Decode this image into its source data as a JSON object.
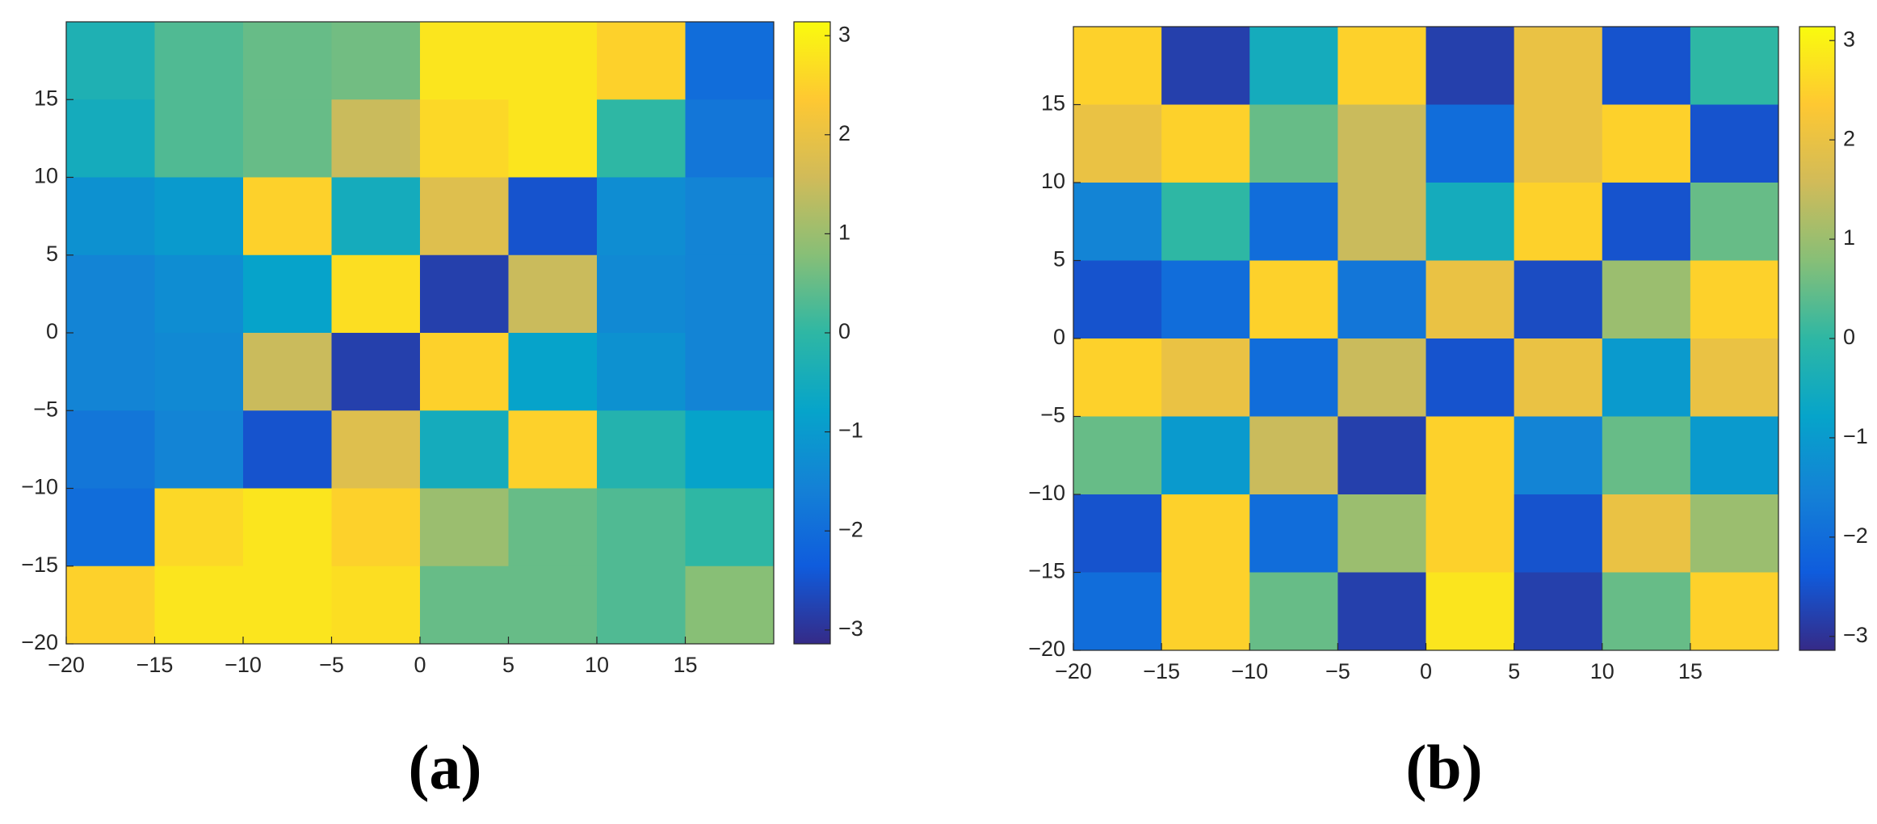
{
  "chart_data": [
    {
      "type": "heatmap",
      "label": "(a)",
      "x": [
        -17.5,
        -12.5,
        -7.5,
        -2.5,
        2.5,
        7.5,
        12.5,
        17.5
      ],
      "y": [
        17.5,
        12.5,
        7.5,
        2.5,
        -2.5,
        -7.5,
        -12.5,
        -17.5
      ],
      "z": [
        [
          -0.3,
          0.3,
          0.5,
          0.6,
          2.8,
          2.8,
          2.5,
          -2.0
        ],
        [
          -0.5,
          0.3,
          0.5,
          1.5,
          2.6,
          2.8,
          0.0,
          -1.8
        ],
        [
          -1.2,
          -1.0,
          2.5,
          -0.5,
          1.8,
          -2.5,
          -1.3,
          -1.5
        ],
        [
          -1.5,
          -1.3,
          -0.8,
          2.7,
          -2.8,
          1.5,
          -1.4,
          -1.5
        ],
        [
          -1.5,
          -1.4,
          1.5,
          -2.8,
          2.5,
          -0.8,
          -1.2,
          -1.5
        ],
        [
          -1.8,
          -1.5,
          -2.5,
          1.8,
          -0.5,
          2.5,
          -0.2,
          -0.8
        ],
        [
          -2.0,
          2.6,
          2.8,
          2.5,
          1.0,
          0.5,
          0.3,
          0.0
        ],
        [
          2.5,
          2.8,
          2.8,
          2.7,
          0.5,
          0.5,
          0.3,
          0.8
        ]
      ],
      "xlim": [
        -20,
        20
      ],
      "ylim": [
        -20,
        20
      ],
      "xticks": [
        {
          "value": -20,
          "label": "−20"
        },
        {
          "value": -15,
          "label": "−15"
        },
        {
          "value": -10,
          "label": "−10"
        },
        {
          "value": -5,
          "label": "−5"
        },
        0,
        5,
        10,
        15
      ],
      "yticks": [
        {
          "value": -20,
          "label": "−20"
        },
        {
          "value": -15,
          "label": "−15"
        },
        {
          "value": -10,
          "label": "−10"
        },
        {
          "value": -5,
          "label": "−5"
        },
        0,
        5,
        10,
        15
      ],
      "clim": [
        -3.14,
        3.14
      ],
      "cticks": [
        {
          "value": -3,
          "label": "−3"
        },
        {
          "value": -2,
          "label": "−2"
        },
        {
          "value": -1,
          "label": "−1"
        },
        0,
        1,
        2,
        3
      ],
      "colormap": [
        "#352a87",
        "#0f5cdd",
        "#1481d6",
        "#06a4ca",
        "#2eb7a4",
        "#87bf77",
        "#d1bb59",
        "#fec832",
        "#f9fb0e"
      ]
    },
    {
      "type": "heatmap",
      "label": "(b)",
      "x": [
        -17.5,
        -12.5,
        -7.5,
        -2.5,
        2.5,
        7.5,
        12.5,
        17.5
      ],
      "y": [
        17.5,
        12.5,
        7.5,
        2.5,
        -2.5,
        -7.5,
        -12.5,
        -17.5
      ],
      "z": [
        [
          2.5,
          -2.8,
          -0.5,
          2.5,
          -2.8,
          2.0,
          -2.5,
          0.0
        ],
        [
          2.0,
          2.5,
          0.5,
          1.5,
          -2.0,
          2.0,
          2.5,
          -2.5
        ],
        [
          -1.5,
          0.0,
          -2.0,
          1.5,
          -0.5,
          2.5,
          -2.5,
          0.5
        ],
        [
          -2.5,
          -2.0,
          2.5,
          -1.8,
          2.0,
          -2.6,
          1.0,
          2.5
        ],
        [
          2.5,
          2.0,
          -2.0,
          1.5,
          -2.5,
          2.0,
          -1.0,
          2.0
        ],
        [
          0.5,
          -1.0,
          1.5,
          -2.8,
          2.5,
          -1.5,
          0.5,
          -1.0
        ],
        [
          -2.5,
          2.5,
          -2.0,
          1.0,
          2.5,
          -2.5,
          2.0,
          1.0
        ],
        [
          -2.0,
          2.5,
          0.5,
          -2.8,
          2.8,
          -2.8,
          0.5,
          2.5
        ]
      ],
      "xlim": [
        -20,
        20
      ],
      "ylim": [
        -20,
        20
      ],
      "xticks": [
        {
          "value": -20,
          "label": "−20"
        },
        {
          "value": -15,
          "label": "−15"
        },
        {
          "value": -10,
          "label": "−10"
        },
        {
          "value": -5,
          "label": "−5"
        },
        0,
        5,
        10,
        15
      ],
      "yticks": [
        {
          "value": -20,
          "label": "−20"
        },
        {
          "value": -15,
          "label": "−15"
        },
        {
          "value": -10,
          "label": "−10"
        },
        {
          "value": -5,
          "label": "−5"
        },
        0,
        5,
        10,
        15
      ],
      "clim": [
        -3.14,
        3.14
      ],
      "cticks": [
        {
          "value": -3,
          "label": "−3"
        },
        {
          "value": -2,
          "label": "−2"
        },
        {
          "value": -1,
          "label": "−1"
        },
        0,
        1,
        2,
        3
      ],
      "colormap": [
        "#352a87",
        "#0f5cdd",
        "#1481d6",
        "#06a4ca",
        "#2eb7a4",
        "#87bf77",
        "#d1bb59",
        "#fec832",
        "#f9fb0e"
      ]
    }
  ]
}
